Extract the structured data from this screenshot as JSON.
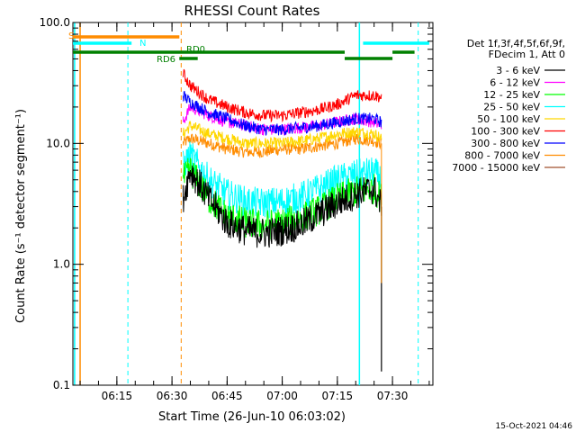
{
  "chart_data": {
    "type": "line",
    "title": "RHESSI Count Rates",
    "xlabel": "Start Time (26-Jun-10 06:03:02)",
    "ylabel": "Count Rate (s⁻¹ detector segment⁻¹)",
    "x_scale": "time",
    "y_scale": "log",
    "xlim": [
      "06:03:02",
      "07:41:00"
    ],
    "ylim": [
      0.1,
      100.0
    ],
    "x_ticks": [
      "06:15",
      "06:30",
      "06:45",
      "07:00",
      "07:15",
      "07:30"
    ],
    "y_ticks": [
      "0.1",
      "1.0",
      "10.0",
      "100.0"
    ],
    "grid": false,
    "legend_placement": "right",
    "legend_title": [
      "Det 1f,3f,4f,5f,6f,9f,",
      "FDecim 1, Att 0"
    ],
    "footer": "15-Oct-2021 04:46",
    "series": [
      {
        "name": "3 - 6 keV",
        "color": "#000000",
        "x": [
          "06:33",
          "06:35",
          "06:40",
          "06:45",
          "06:50",
          "06:55",
          "07:00",
          "07:05",
          "07:10",
          "07:15",
          "07:20",
          "07:25",
          "07:27"
        ],
        "values": [
          3.5,
          6.0,
          3.5,
          2.2,
          1.9,
          1.8,
          1.9,
          2.1,
          2.6,
          3.2,
          3.8,
          4.2,
          3.0
        ]
      },
      {
        "name": "6 - 12 keV",
        "color": "#ff00ff",
        "x": [
          "06:33",
          "06:35",
          "06:40",
          "06:45",
          "06:50",
          "06:55",
          "07:00",
          "07:05",
          "07:10",
          "07:15",
          "07:20",
          "07:25",
          "07:27"
        ],
        "values": [
          15,
          20,
          17,
          15,
          14,
          13,
          13,
          13.5,
          14,
          15,
          16,
          15,
          14
        ]
      },
      {
        "name": "12 - 25 keV",
        "color": "#00ff00",
        "x": [
          "06:33",
          "06:35",
          "06:40",
          "06:45",
          "06:50",
          "06:55",
          "07:00",
          "07:05",
          "07:10",
          "07:15",
          "07:20",
          "07:25",
          "07:27"
        ],
        "values": [
          5.0,
          6.0,
          3.5,
          2.5,
          2.2,
          2.1,
          2.2,
          2.4,
          2.8,
          3.5,
          4.0,
          4.2,
          3.5
        ]
      },
      {
        "name": "25 - 50 keV",
        "color": "#00ffff",
        "x": [
          "06:33",
          "06:35",
          "06:40",
          "06:45",
          "06:50",
          "06:55",
          "07:00",
          "07:05",
          "07:10",
          "07:15",
          "07:20",
          "07:25",
          "07:27"
        ],
        "values": [
          6.5,
          8.0,
          5.0,
          3.8,
          3.3,
          3.2,
          3.3,
          3.6,
          4.2,
          5.0,
          5.5,
          5.8,
          5.0
        ]
      },
      {
        "name": "50 - 100 keV",
        "color": "#ffd700",
        "x": [
          "06:33",
          "06:35",
          "06:40",
          "06:45",
          "06:50",
          "06:55",
          "07:00",
          "07:05",
          "07:10",
          "07:15",
          "07:20",
          "07:25",
          "07:27"
        ],
        "values": [
          12,
          14,
          12,
          11,
          10,
          10,
          10,
          10.5,
          11,
          12,
          12.5,
          12,
          11
        ]
      },
      {
        "name": "100 - 300 keV",
        "color": "#ff0000",
        "x": [
          "06:33",
          "06:35",
          "06:40",
          "06:45",
          "06:50",
          "06:55",
          "07:00",
          "07:05",
          "07:10",
          "07:15",
          "07:20",
          "07:25",
          "07:27"
        ],
        "values": [
          38,
          30,
          23,
          20,
          18,
          17,
          17,
          18,
          19,
          21,
          25,
          25,
          24
        ]
      },
      {
        "name": "300 - 800 keV",
        "color": "#0000ff",
        "x": [
          "06:33",
          "06:35",
          "06:40",
          "06:45",
          "06:50",
          "06:55",
          "07:00",
          "07:05",
          "07:10",
          "07:15",
          "07:20",
          "07:25",
          "07:27"
        ],
        "values": [
          25,
          22,
          18,
          16,
          14,
          13,
          13,
          13.5,
          14,
          15,
          16,
          16,
          15
        ]
      },
      {
        "name": "800 - 7000 keV",
        "color": "#ff8c00",
        "x": [
          "06:33",
          "06:35",
          "06:40",
          "06:45",
          "06:50",
          "06:55",
          "07:00",
          "07:05",
          "07:10",
          "07:15",
          "07:20",
          "07:25",
          "07:27"
        ],
        "values": [
          10,
          11,
          10,
          9,
          8.5,
          8.5,
          9,
          9,
          9.5,
          10,
          11,
          10.5,
          10
        ]
      },
      {
        "name": "7000 - 15000 keV",
        "color": "#a0522d",
        "x": [],
        "values": []
      }
    ],
    "attenuator_flags": [
      {
        "label": "S",
        "color": "#ff8c00",
        "segments": [
          [
            "06:03:02",
            "06:32"
          ]
        ]
      },
      {
        "label": "N",
        "color": "#00ffff",
        "segments": [
          [
            "06:03:02",
            "06:19"
          ],
          [
            "07:22",
            "07:40"
          ]
        ]
      },
      {
        "label": "RD0",
        "color": "#008000",
        "segments": [
          [
            "06:03:02",
            "07:17"
          ],
          [
            "07:30",
            "07:36"
          ]
        ]
      },
      {
        "label": "RD6",
        "color": "#008000",
        "segments": [
          [
            "06:32",
            "06:37"
          ],
          [
            "07:17",
            "07:30"
          ]
        ]
      }
    ],
    "vertical_markers": [
      {
        "x": "06:03:30",
        "color": "#00ffff",
        "style": "solid"
      },
      {
        "x": "06:05:00",
        "color": "#ff8c00",
        "style": "solid"
      },
      {
        "x": "06:18:00",
        "color": "#00ffff",
        "style": "dashed"
      },
      {
        "x": "06:32:30",
        "color": "#ff8c00",
        "style": "dashed"
      },
      {
        "x": "07:21:00",
        "color": "#00ffff",
        "style": "solid"
      },
      {
        "x": "07:37:00",
        "color": "#00ffff",
        "style": "dashed"
      }
    ]
  }
}
